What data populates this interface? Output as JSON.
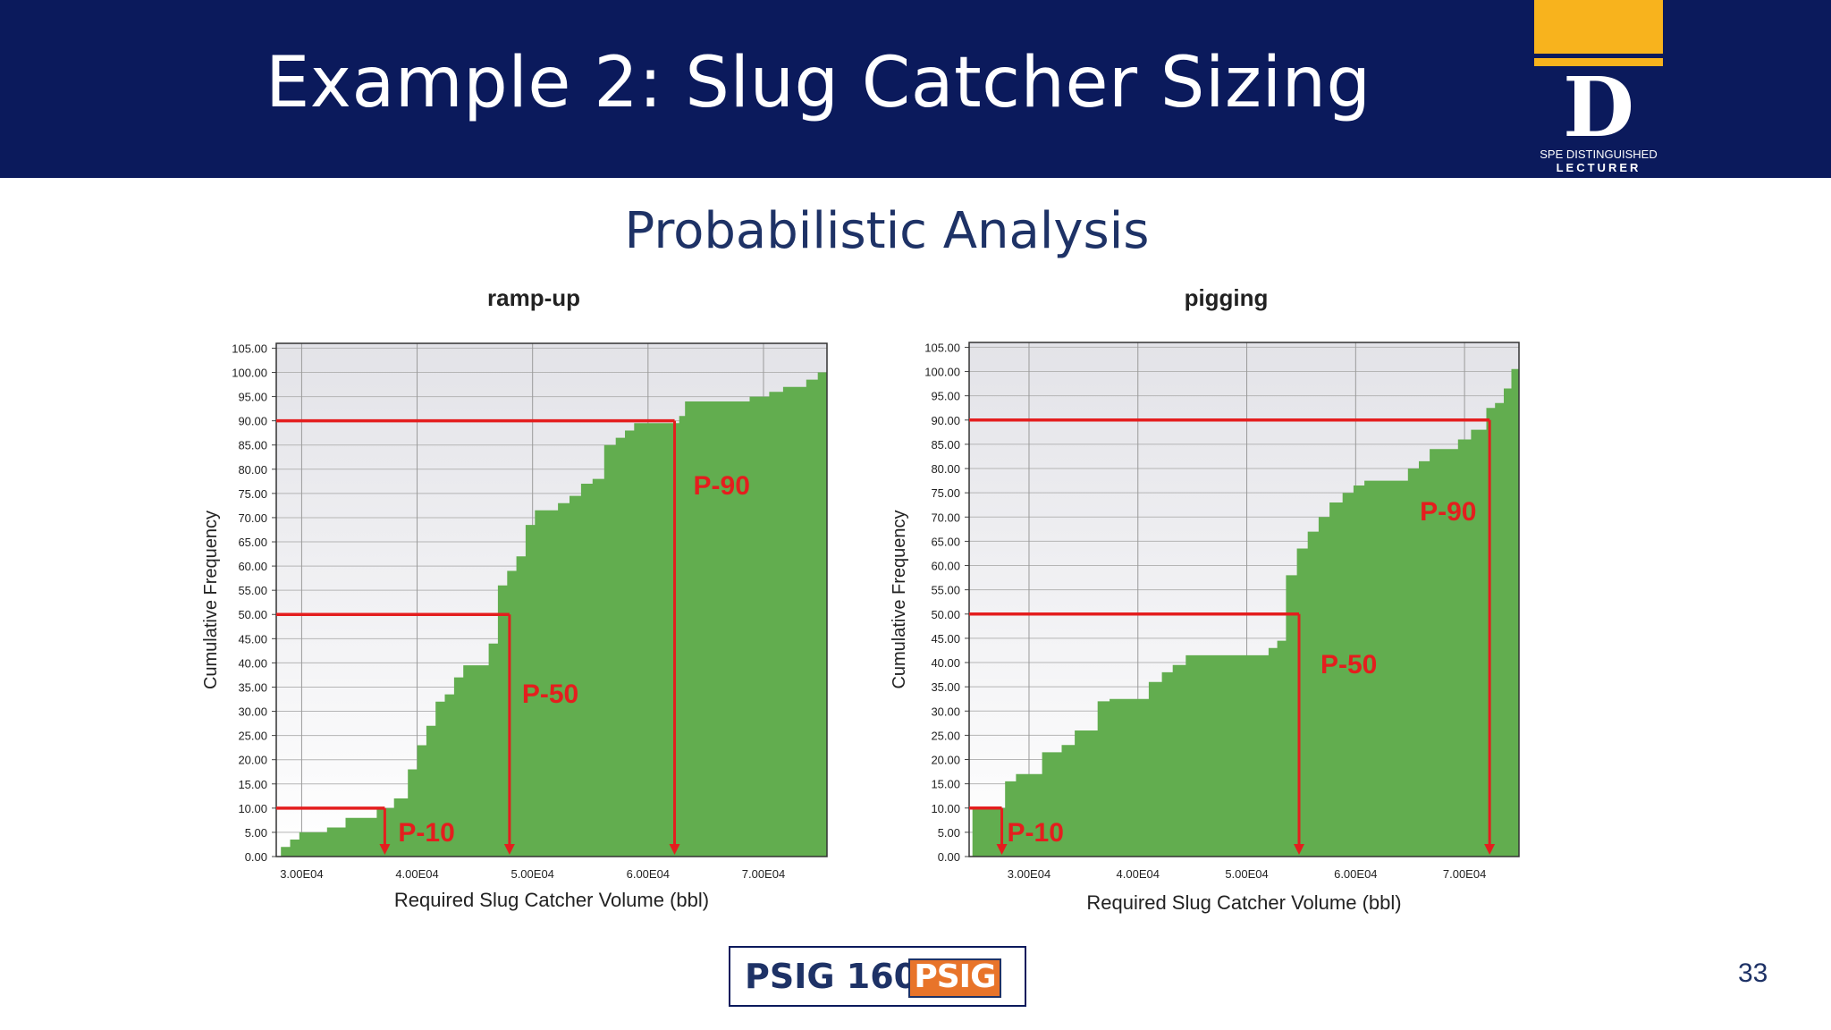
{
  "slide": {
    "title": "Example 2: Slug Catcher Sizing",
    "subtitle": "Probabilistic Analysis",
    "page_number": "33",
    "badge_text": "PSIG 1603",
    "badge_logo_text": "PSIG",
    "logo": {
      "letter": "D",
      "line1": "SPE DISTINGUISHED",
      "line2": "LECTURER"
    },
    "colors": {
      "header": "#0b1a5c",
      "accent": "#f8b31d",
      "bars": "#62ad4f",
      "markers": "#e41e1e"
    }
  },
  "chart_data": [
    {
      "type": "area",
      "title": "ramp-up",
      "xlabel": "Required Slug Catcher Volume (bbl)",
      "ylabel": "Cumulative Frequency",
      "xlim": [
        27800,
        75500
      ],
      "ylim": [
        0,
        106
      ],
      "xticks": [
        30000,
        40000,
        50000,
        60000,
        70000
      ],
      "xtick_labels": [
        "3.00E04",
        "4.00E04",
        "5.00E04",
        "6.00E04",
        "7.00E04"
      ],
      "yticks": [
        0,
        5,
        10,
        15,
        20,
        25,
        30,
        35,
        40,
        45,
        50,
        55,
        60,
        65,
        70,
        75,
        80,
        85,
        90,
        95,
        100,
        105
      ],
      "ytick_labels": [
        "0.00",
        "5.00",
        "10.00",
        "15.00",
        "20.00",
        "25.00",
        "30.00",
        "35.00",
        "40.00",
        "45.00",
        "50.00",
        "55.00",
        "60.00",
        "65.00",
        "70.00",
        "75.00",
        "80.00",
        "85.00",
        "90.00",
        "95.00",
        "100.00",
        "105.00"
      ],
      "grid": true,
      "steps": [
        [
          28200,
          2
        ],
        [
          29000,
          3.5
        ],
        [
          29800,
          5
        ],
        [
          31000,
          5
        ],
        [
          32200,
          6
        ],
        [
          33800,
          8
        ],
        [
          36500,
          10
        ],
        [
          38000,
          12
        ],
        [
          39200,
          18
        ],
        [
          40000,
          23
        ],
        [
          40800,
          27
        ],
        [
          41600,
          32
        ],
        [
          42400,
          33.5
        ],
        [
          43200,
          37
        ],
        [
          44000,
          39.5
        ],
        [
          45200,
          39.5
        ],
        [
          46200,
          44
        ],
        [
          47000,
          56
        ],
        [
          47800,
          59
        ],
        [
          48600,
          62
        ],
        [
          49400,
          68.5
        ],
        [
          50200,
          71.5
        ],
        [
          51300,
          71.5
        ],
        [
          52200,
          73
        ],
        [
          53200,
          74.5
        ],
        [
          54200,
          77
        ],
        [
          55200,
          78
        ],
        [
          56200,
          85
        ],
        [
          57200,
          86.5
        ],
        [
          58000,
          88
        ],
        [
          58800,
          89.5
        ],
        [
          60000,
          89.5
        ],
        [
          62700,
          91
        ],
        [
          63200,
          94
        ],
        [
          65000,
          94
        ],
        [
          68800,
          95
        ],
        [
          70500,
          96
        ],
        [
          71700,
          97
        ],
        [
          73700,
          98.5
        ],
        [
          74700,
          100
        ]
      ],
      "x_end": 75500,
      "markers": [
        {
          "label": "P-10",
          "p": 10,
          "x": 37200
        },
        {
          "label": "P-50",
          "p": 50,
          "x": 48000
        },
        {
          "label": "P-90",
          "p": 90,
          "x": 62300
        }
      ]
    },
    {
      "type": "area",
      "title": "pigging",
      "xlabel": "Required Slug Catcher Volume (bbl)",
      "ylabel": "Cumulative Frequency",
      "xlim": [
        24500,
        75000
      ],
      "ylim": [
        0,
        106
      ],
      "xticks": [
        30000,
        40000,
        50000,
        60000,
        70000
      ],
      "xtick_labels": [
        "3.00E04",
        "4.00E04",
        "5.00E04",
        "6.00E04",
        "7.00E04"
      ],
      "yticks": [
        0,
        5,
        10,
        15,
        20,
        25,
        30,
        35,
        40,
        45,
        50,
        55,
        60,
        65,
        70,
        75,
        80,
        85,
        90,
        95,
        100,
        105
      ],
      "ytick_labels": [
        "0.00",
        "5.00",
        "10.00",
        "15.00",
        "20.00",
        "25.00",
        "30.00",
        "35.00",
        "40.00",
        "45.00",
        "50.00",
        "55.00",
        "60.00",
        "65.00",
        "70.00",
        "75.00",
        "80.00",
        "85.00",
        "90.00",
        "95.00",
        "100.00",
        "105.00"
      ],
      "grid": true,
      "steps": [
        [
          24800,
          10
        ],
        [
          26200,
          10
        ],
        [
          27800,
          15.5
        ],
        [
          28800,
          17
        ],
        [
          31200,
          21.5
        ],
        [
          33000,
          23
        ],
        [
          34200,
          26
        ],
        [
          36300,
          32
        ],
        [
          37400,
          32.5
        ],
        [
          39800,
          32.5
        ],
        [
          41000,
          36
        ],
        [
          42200,
          38
        ],
        [
          43200,
          39.5
        ],
        [
          44400,
          41.5
        ],
        [
          48600,
          41.5
        ],
        [
          52000,
          43
        ],
        [
          52800,
          44.5
        ],
        [
          53600,
          58
        ],
        [
          54600,
          63.5
        ],
        [
          55600,
          67
        ],
        [
          56600,
          70
        ],
        [
          57600,
          73
        ],
        [
          58800,
          75
        ],
        [
          59800,
          76.5
        ],
        [
          60800,
          77.5
        ],
        [
          64800,
          80
        ],
        [
          65800,
          81.5
        ],
        [
          66800,
          84
        ],
        [
          67800,
          84
        ],
        [
          69400,
          86
        ],
        [
          70600,
          88
        ],
        [
          72000,
          92.5
        ],
        [
          72800,
          93.5
        ],
        [
          73600,
          96.5
        ],
        [
          74300,
          100.5
        ]
      ],
      "x_end": 75000,
      "markers": [
        {
          "label": "P-10",
          "p": 10,
          "x": 27500
        },
        {
          "label": "P-50",
          "p": 50,
          "x": 54800
        },
        {
          "label": "P-90",
          "p": 90,
          "x": 72300
        }
      ]
    }
  ]
}
